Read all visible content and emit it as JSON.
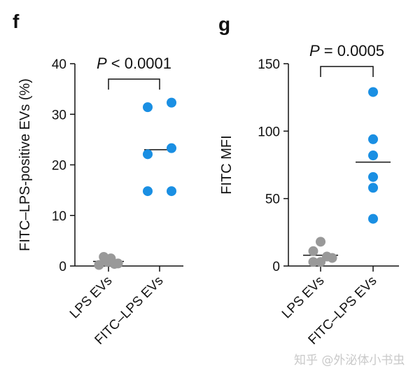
{
  "colors": {
    "grey": "#999999",
    "blue": "#1a8fe3",
    "axis": "#111111"
  },
  "watermark": "知乎 @外泌体小书虫",
  "chart_data": [
    {
      "type": "scatter",
      "panel": "f",
      "ylabel": "FITC–LPS-positive EVs (%)",
      "ylim": [
        0,
        40
      ],
      "yticks": [
        0,
        10,
        20,
        30,
        40
      ],
      "categories": [
        "LPS EVs",
        "FITC–LPS EVs"
      ],
      "annotation": "P < 0.0001",
      "series": [
        {
          "name": "LPS EVs",
          "color_key": "grey",
          "mean": 0.9,
          "points": [
            {
              "jitter": -0.4,
              "y": 0.2
            },
            {
              "jitter": -0.2,
              "y": 1.8
            },
            {
              "jitter": -0.05,
              "y": 0.8
            },
            {
              "jitter": 0.1,
              "y": 1.5
            },
            {
              "jitter": 0.25,
              "y": 0.4
            },
            {
              "jitter": 0.4,
              "y": 0.5
            }
          ]
        },
        {
          "name": "FITC–LPS EVs",
          "color_key": "blue",
          "mean": 23.0,
          "points": [
            {
              "jitter": -0.5,
              "y": 31.4
            },
            {
              "jitter": 0.5,
              "y": 32.3
            },
            {
              "jitter": -0.5,
              "y": 22.1
            },
            {
              "jitter": 0.5,
              "y": 23.3
            },
            {
              "jitter": -0.5,
              "y": 14.8
            },
            {
              "jitter": 0.5,
              "y": 14.8
            }
          ]
        }
      ]
    },
    {
      "type": "scatter",
      "panel": "g",
      "ylabel": "FITC MFI",
      "ylim": [
        0,
        150
      ],
      "yticks": [
        0,
        50,
        100,
        150
      ],
      "categories": [
        "LPS EVs",
        "FITC–LPS EVs"
      ],
      "annotation": "P = 0.0005",
      "series": [
        {
          "name": "LPS EVs",
          "color_key": "grey",
          "mean": 8,
          "points": [
            {
              "jitter": 0.0,
              "y": 18
            },
            {
              "jitter": -0.35,
              "y": 11
            },
            {
              "jitter": 0.3,
              "y": 7
            },
            {
              "jitter": 0.55,
              "y": 6
            },
            {
              "jitter": -0.35,
              "y": 3
            },
            {
              "jitter": 0.0,
              "y": 3
            }
          ]
        },
        {
          "name": "FITC–LPS EVs",
          "color_key": "blue",
          "mean": 77,
          "points": [
            {
              "jitter": 0.0,
              "y": 129
            },
            {
              "jitter": 0.0,
              "y": 94
            },
            {
              "jitter": 0.0,
              "y": 82
            },
            {
              "jitter": 0.0,
              "y": 66
            },
            {
              "jitter": 0.0,
              "y": 58
            },
            {
              "jitter": 0.0,
              "y": 35
            }
          ]
        }
      ]
    }
  ]
}
